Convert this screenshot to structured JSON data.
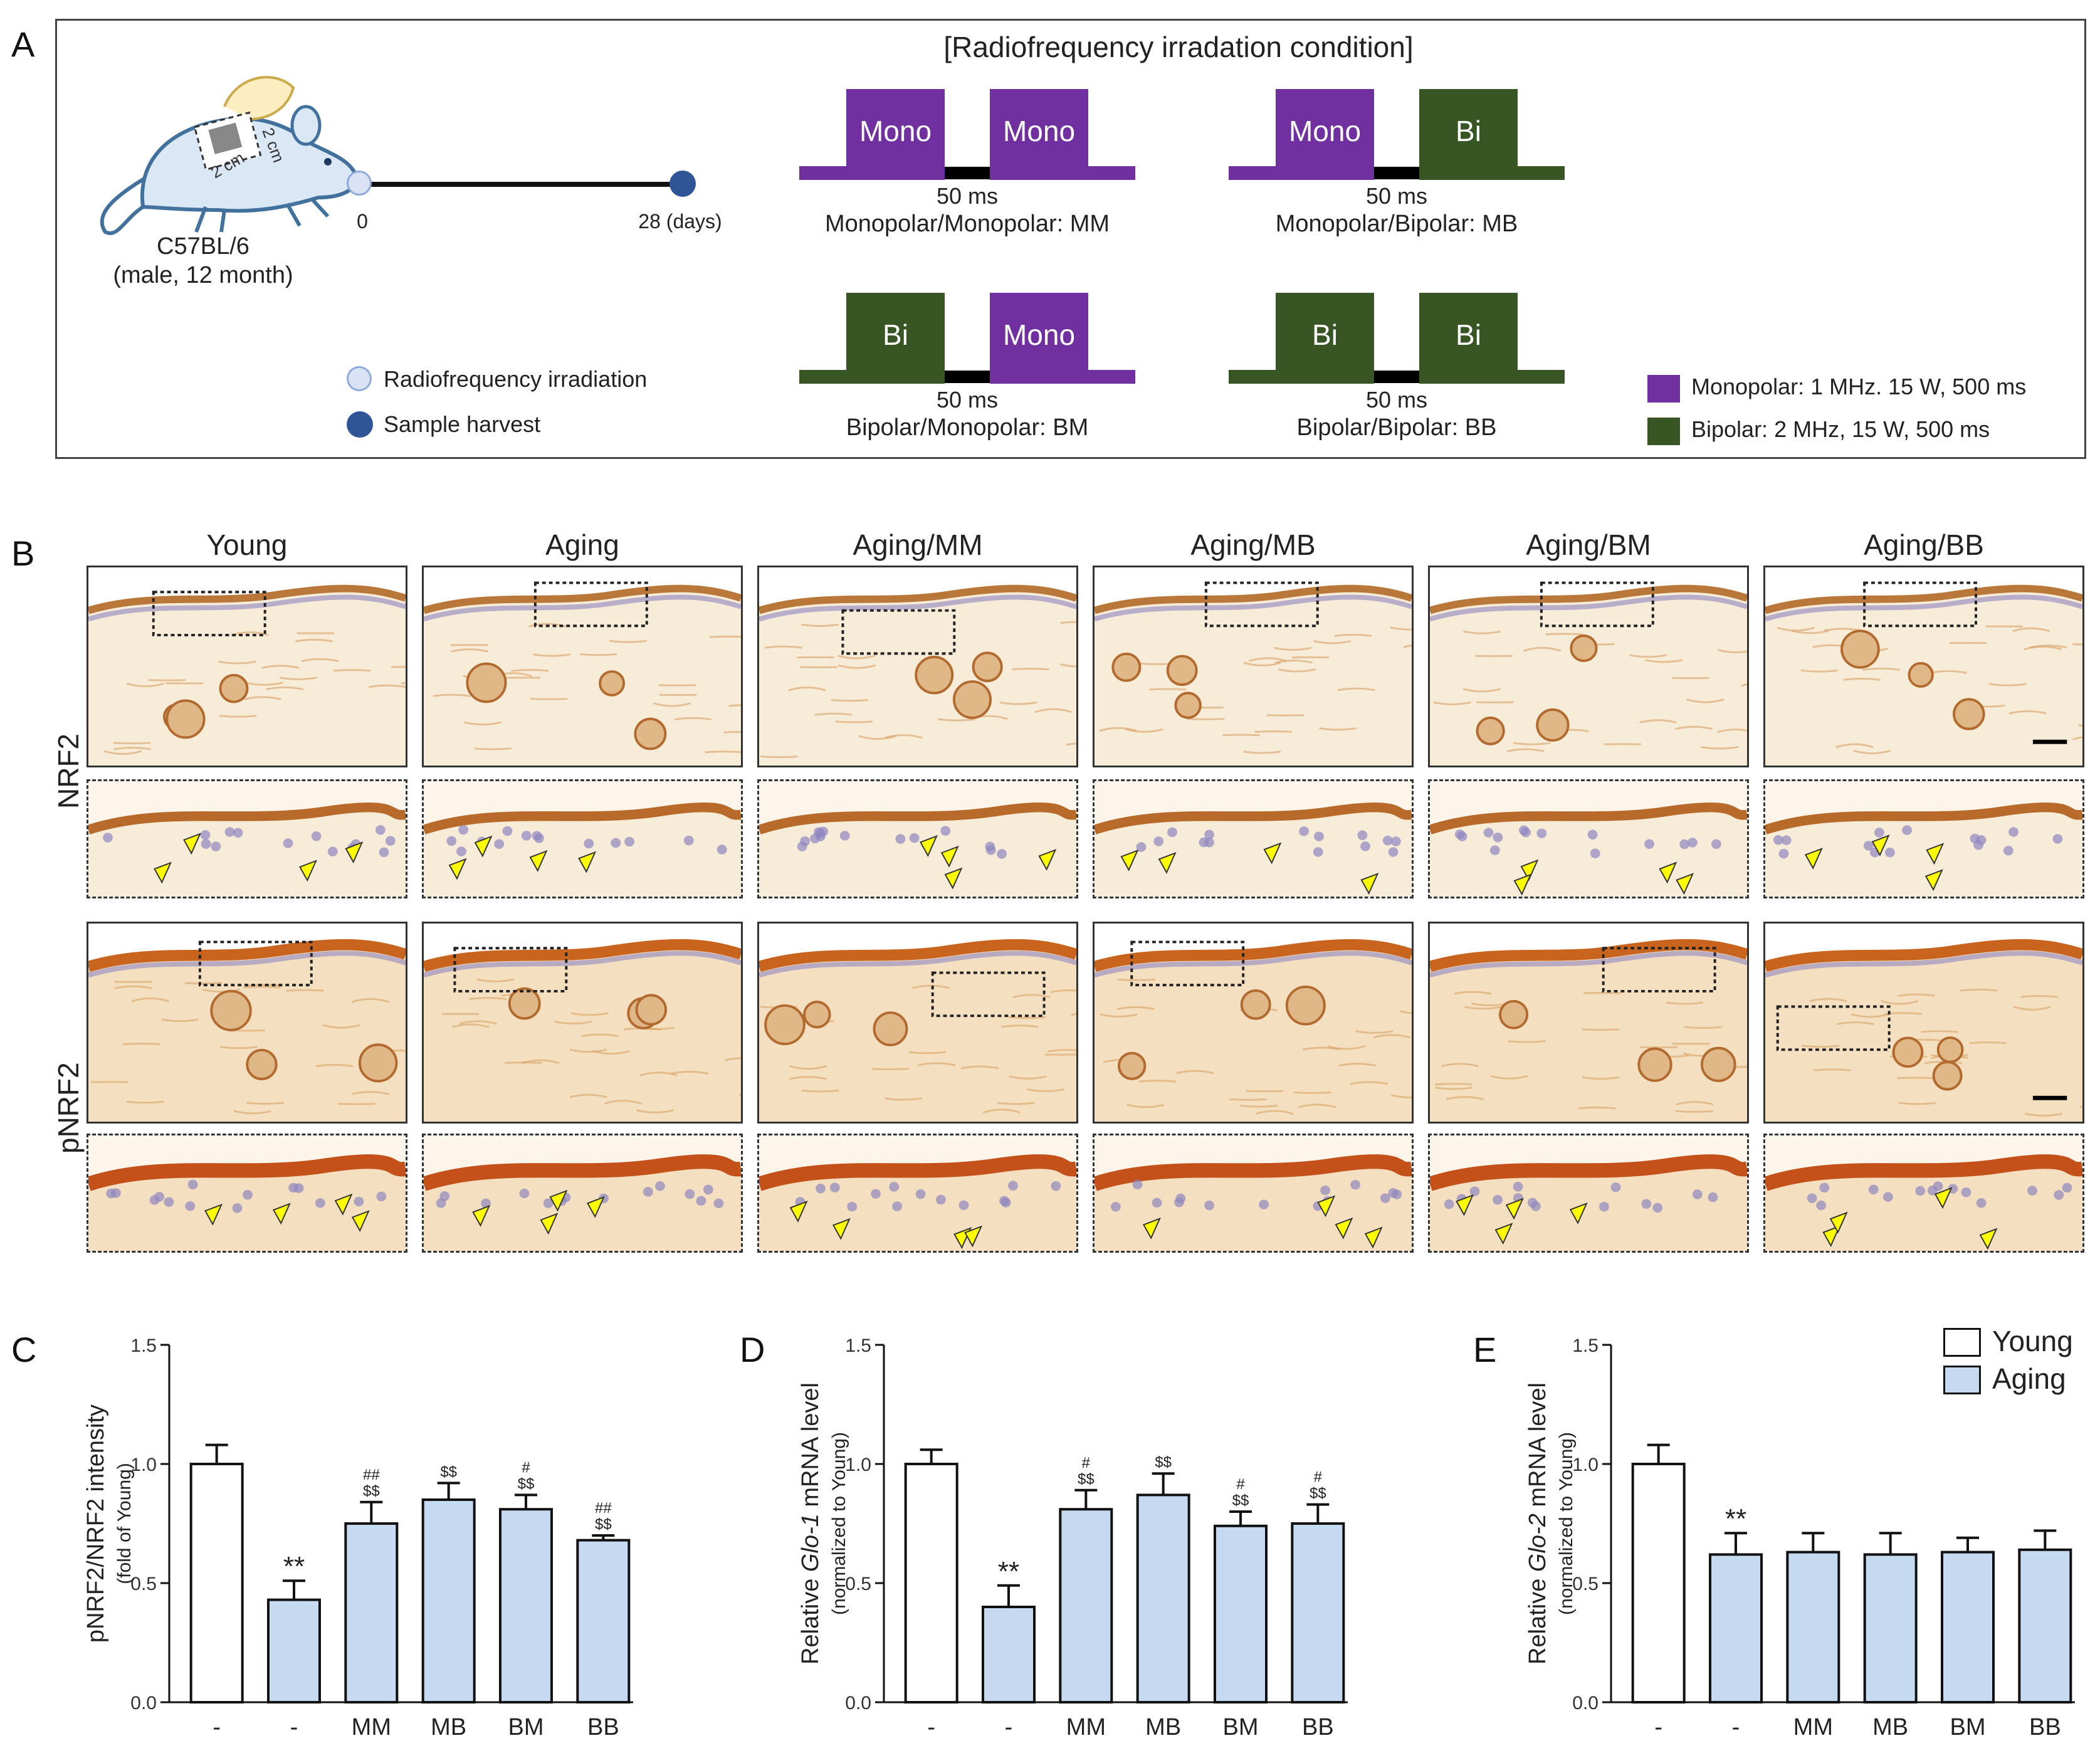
{
  "panel_labels": {
    "a": "A",
    "b": "B",
    "c": "C",
    "d": "D",
    "e": "E"
  },
  "panel_a": {
    "title": "[Radiofrequency irradation condition]",
    "mouse": {
      "strain": "C57BL/6",
      "details": "(male, 12 month)",
      "area_label_1": "2 cm",
      "area_label_2": "2 cm"
    },
    "timeline": {
      "start": "0",
      "end": "28 (days)"
    },
    "timeline_legend": {
      "irradiation": "Radiofrequency irradiation",
      "harvest": "Sample harvest"
    },
    "conditions": [
      {
        "first": "Mono",
        "second": "Mono",
        "gap": "50 ms",
        "name": "Monopolar/Monopolar: MM"
      },
      {
        "first": "Mono",
        "second": "Bi",
        "gap": "50 ms",
        "name": "Monopolar/Bipolar: MB"
      },
      {
        "first": "Bi",
        "second": "Mono",
        "gap": "50 ms",
        "name": "Bipolar/Monopolar: BM"
      },
      {
        "first": "Bi",
        "second": "Bi",
        "gap": "50 ms",
        "name": "Bipolar/Bipolar: BB"
      }
    ],
    "legend": {
      "monopolar": "Monopolar: 1 MHz. 15 W, 500 ms",
      "bipolar": "Bipolar: 2 MHz, 15 W, 500 ms"
    },
    "colors": {
      "mono": "#7030a0",
      "bi": "#375623"
    }
  },
  "panel_b": {
    "columns": [
      "Young",
      "Aging",
      "Aging/MM",
      "Aging/MB",
      "Aging/BM",
      "Aging/BB"
    ],
    "rows": [
      "NRF2",
      "pNRF2"
    ]
  },
  "bar_legend": {
    "young": "Young",
    "aging": "Aging",
    "young_color": "#ffffff",
    "aging_color": "#c5d9f1"
  },
  "chart_data": [
    {
      "type": "bar",
      "panel": "C",
      "ylabel": "pNRF2/NRF2 intensity",
      "ylabel_sub": "(fold of Young)",
      "categories": [
        "-",
        "-",
        "MM",
        "MB",
        "BM",
        "BB"
      ],
      "groups": [
        "Young",
        "Aging",
        "Aging",
        "Aging",
        "Aging",
        "Aging"
      ],
      "values": [
        1.0,
        0.43,
        0.75,
        0.85,
        0.81,
        0.68
      ],
      "errors": [
        0.08,
        0.08,
        0.09,
        0.07,
        0.06,
        0.02
      ],
      "annotations": [
        "",
        "**",
        "##\n$$",
        "$$",
        "#\n$$",
        "##\n$$"
      ],
      "ylim": [
        0,
        1.5
      ],
      "yticks": [
        "0.0",
        "0.5",
        "1.0",
        "1.5"
      ]
    },
    {
      "type": "bar",
      "panel": "D",
      "ylabel_prefix": "Relative ",
      "ylabel_gene": "Glo-1",
      "ylabel_suffix": " mRNA level",
      "ylabel_sub": "(normalized to  Young)",
      "categories": [
        "-",
        "-",
        "MM",
        "MB",
        "BM",
        "BB"
      ],
      "groups": [
        "Young",
        "Aging",
        "Aging",
        "Aging",
        "Aging",
        "Aging"
      ],
      "values": [
        1.0,
        0.4,
        0.81,
        0.87,
        0.74,
        0.75
      ],
      "errors": [
        0.06,
        0.09,
        0.08,
        0.09,
        0.06,
        0.08
      ],
      "annotations": [
        "",
        "**",
        "#\n$$",
        "$$",
        "#\n$$",
        "#\n$$"
      ],
      "ylim": [
        0,
        1.5
      ],
      "yticks": [
        "0.0",
        "0.5",
        "1.0",
        "1.5"
      ]
    },
    {
      "type": "bar",
      "panel": "E",
      "ylabel_prefix": "Relative ",
      "ylabel_gene": "Glo-2",
      "ylabel_suffix": " mRNA level",
      "ylabel_sub": "(normalized to  Young)",
      "categories": [
        "-",
        "-",
        "MM",
        "MB",
        "BM",
        "BB"
      ],
      "groups": [
        "Young",
        "Aging",
        "Aging",
        "Aging",
        "Aging",
        "Aging"
      ],
      "values": [
        1.0,
        0.62,
        0.63,
        0.62,
        0.63,
        0.64
      ],
      "errors": [
        0.08,
        0.09,
        0.08,
        0.09,
        0.06,
        0.08
      ],
      "annotations": [
        "",
        "**",
        "",
        "",
        "",
        ""
      ],
      "ylim": [
        0,
        1.5
      ],
      "yticks": [
        "0.0",
        "0.5",
        "1.0",
        "1.5"
      ]
    }
  ]
}
